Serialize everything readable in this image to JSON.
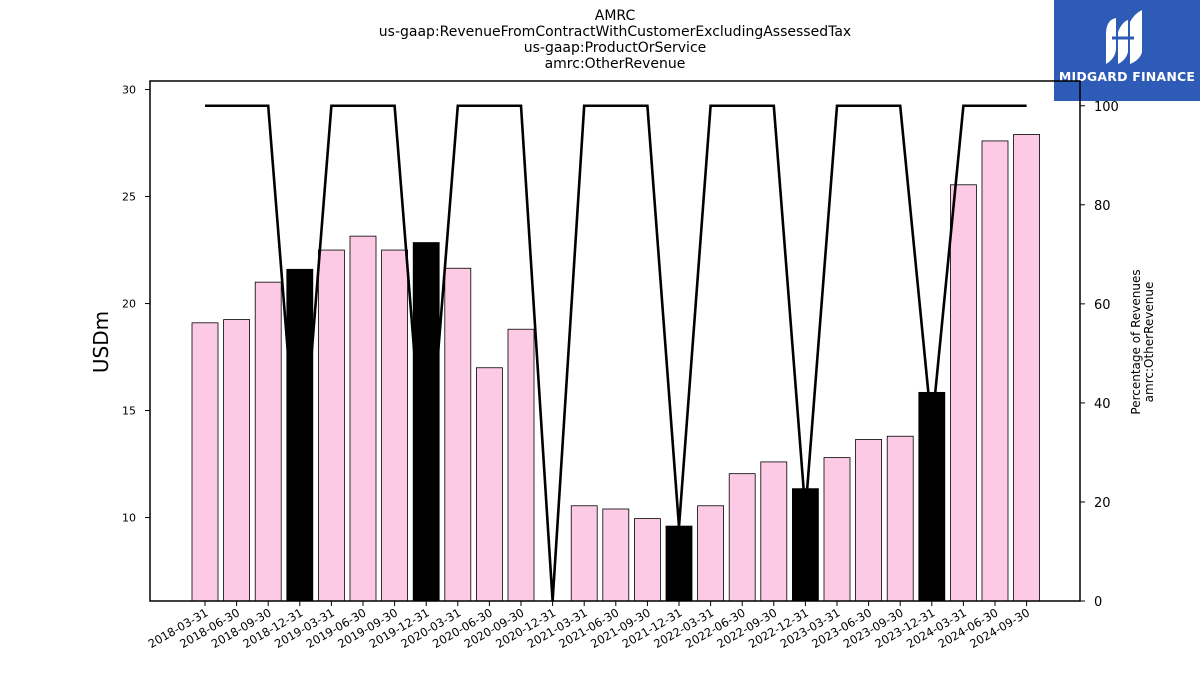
{
  "title_lines": [
    "AMRC",
    "us-gaap:RevenueFromContractWithCustomerExcludingAssessedTax",
    "us-gaap:ProductOrService",
    "amrc:OtherRevenue"
  ],
  "logo": {
    "text": "MIDGARD FINANCE",
    "background": "#2d5bb5",
    "icon": "midgard-logo-icon"
  },
  "colors": {
    "bar": "#fccae4",
    "bar_highlight": "#000000",
    "line": "#000000"
  },
  "chart_data": {
    "type": "bar",
    "categories": [
      "2018-03-31",
      "2018-06-30",
      "2018-09-30",
      "2018-12-31",
      "2019-03-31",
      "2019-06-30",
      "2019-09-30",
      "2019-12-31",
      "2020-03-31",
      "2020-06-30",
      "2020-09-30",
      "2020-12-31",
      "2021-03-31",
      "2021-06-30",
      "2021-09-30",
      "2021-12-31",
      "2022-03-31",
      "2022-06-30",
      "2022-09-30",
      "2022-12-31",
      "2023-03-31",
      "2023-06-30",
      "2023-09-30",
      "2023-12-31",
      "2024-03-31",
      "2024-06-30",
      "2024-09-30"
    ],
    "values": [
      19.1,
      19.25,
      21.0,
      21.6,
      22.5,
      23.15,
      22.5,
      22.85,
      21.65,
      17.0,
      18.8,
      null,
      10.55,
      10.4,
      9.95,
      9.6,
      10.55,
      12.05,
      12.6,
      11.35,
      12.8,
      13.65,
      13.8,
      15.85,
      25.55,
      27.6,
      27.9
    ],
    "highlight": [
      false,
      false,
      false,
      true,
      false,
      false,
      false,
      true,
      false,
      false,
      false,
      false,
      false,
      false,
      false,
      true,
      false,
      false,
      false,
      true,
      false,
      false,
      false,
      true,
      false,
      false,
      false
    ],
    "line_series": {
      "values": [
        100,
        100,
        100,
        20,
        100,
        100,
        100,
        20,
        100,
        100,
        100,
        0,
        100,
        100,
        100,
        15,
        100,
        100,
        100,
        18,
        100,
        100,
        100,
        35,
        100,
        100,
        100
      ]
    },
    "ylabel": "USDm",
    "ylim": [
      6.1,
      30.4
    ],
    "yticks": [
      10,
      15,
      20,
      25,
      30
    ],
    "y2label": [
      "Percentage of Revenues",
      "amrc:OtherRevenue"
    ],
    "y2lim": [
      0,
      105
    ],
    "y2ticks": [
      0,
      20,
      40,
      60,
      80,
      100
    ],
    "grid": false,
    "legend": "none"
  }
}
